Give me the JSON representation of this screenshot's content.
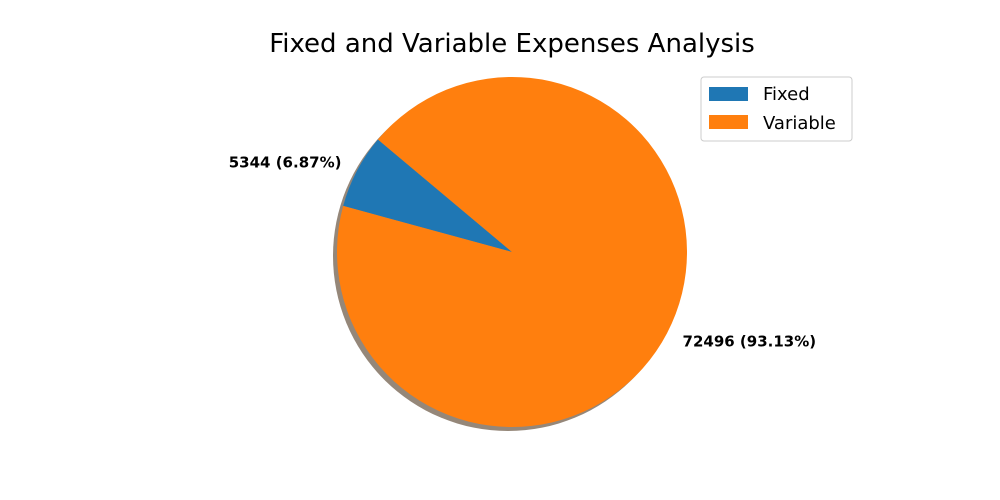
{
  "chart_data": {
    "type": "pie",
    "title": "Fixed and Variable Expenses Analysis",
    "categories": [
      "Fixed",
      "Variable"
    ],
    "values": [
      5344,
      72496
    ],
    "labels": [
      "5344  (6.87%)",
      "72496  (93.13%)"
    ],
    "colors": [
      "#1f77b4",
      "#ff7f0e"
    ],
    "shadow": true,
    "start_angle_deg": 140,
    "legend": {
      "position": "top-right",
      "entries": [
        "Fixed",
        "Variable"
      ]
    }
  }
}
